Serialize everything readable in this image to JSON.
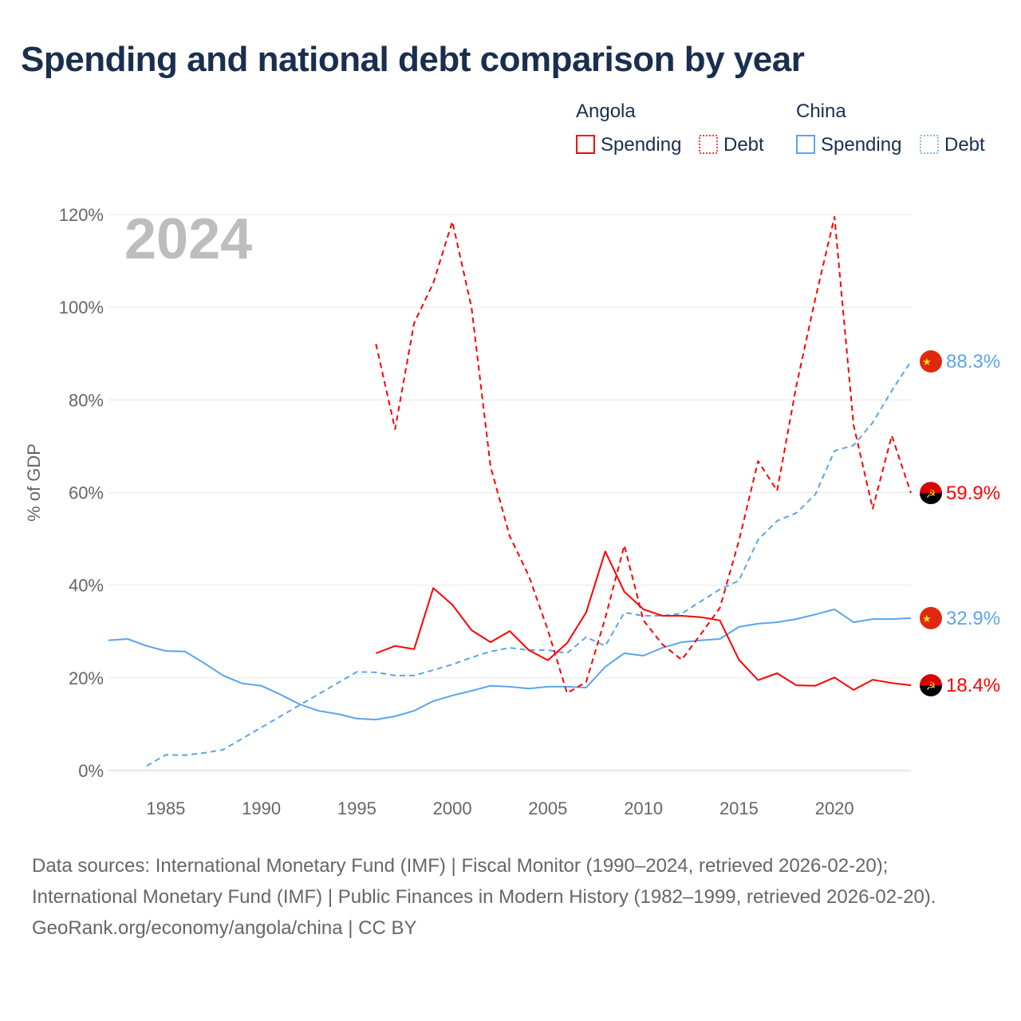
{
  "title": "Spending and national debt comparison by year",
  "year_watermark": "2024",
  "legend": {
    "groups": [
      {
        "country": "Angola",
        "items": [
          "Spending",
          "Debt"
        ],
        "color": "#ff0000"
      },
      {
        "country": "China",
        "items": [
          "Spending",
          "Debt"
        ],
        "color": "#5aa5ee"
      }
    ]
  },
  "chart_data": {
    "type": "line",
    "title": "Spending and national debt comparison by year",
    "ylabel": "% of GDP",
    "xlabel": "",
    "xlim": [
      1982,
      2024
    ],
    "ylim": [
      0,
      120
    ],
    "x_ticks": [
      "1985",
      "1990",
      "1995",
      "2000",
      "2005",
      "2010",
      "2015",
      "2020"
    ],
    "x_tick_values": [
      1985,
      1990,
      1995,
      2000,
      2005,
      2010,
      2015,
      2020
    ],
    "y_ticks": [
      "0%",
      "20%",
      "40%",
      "60%",
      "80%",
      "100%",
      "120%"
    ],
    "y_tick_values": [
      0,
      20,
      40,
      60,
      80,
      100,
      120
    ],
    "grid": true,
    "series": [
      {
        "name": "China Spending",
        "country": "China",
        "style": "solid",
        "color": "#5aa5ee",
        "start": 1982,
        "end_label": "32.9%",
        "values": [
          28.1,
          28.4,
          26.9,
          25.8,
          25.7,
          23.2,
          20.5,
          18.8,
          18.3,
          16.4,
          14.3,
          12.9,
          12.2,
          11.2,
          11.0,
          11.7,
          12.9,
          15.0,
          16.2,
          17.2,
          18.3,
          18.1,
          17.7,
          18.1,
          18.1,
          17.9,
          22.4,
          25.3,
          24.8,
          26.5,
          27.7,
          28.1,
          28.4,
          31.0,
          31.7,
          32.0,
          32.7,
          33.7,
          34.8,
          32.0,
          32.7,
          32.7,
          32.9
        ]
      },
      {
        "name": "China Debt",
        "country": "China",
        "style": "dashed",
        "color": "#5aa5ee",
        "start": 1984,
        "end_label": "88.3%",
        "values": [
          1.0,
          3.4,
          3.3,
          3.8,
          4.5,
          6.9,
          9.3,
          11.7,
          14.1,
          16.5,
          18.9,
          21.3,
          21.2,
          20.5,
          20.5,
          21.7,
          22.9,
          24.4,
          25.7,
          26.5,
          26.0,
          26.0,
          25.3,
          28.8,
          26.9,
          34.1,
          33.4,
          33.4,
          33.9,
          36.5,
          39.1,
          41.0,
          49.8,
          53.9,
          55.6,
          59.6,
          69.0,
          70.2,
          75.1,
          82.0,
          88.3
        ]
      },
      {
        "name": "Angola Spending",
        "country": "Angola",
        "style": "solid",
        "color": "#ff0000",
        "start": 1996,
        "end_label": "18.4%",
        "values": [
          25.3,
          26.9,
          26.2,
          39.4,
          35.8,
          30.3,
          27.7,
          30.1,
          26.0,
          23.8,
          27.5,
          34.1,
          47.3,
          38.6,
          34.8,
          33.4,
          33.4,
          33.1,
          32.4,
          23.9,
          19.5,
          21.0,
          18.4,
          18.3,
          20.1,
          17.4,
          19.6,
          18.9,
          18.4
        ]
      },
      {
        "name": "Angola Debt",
        "country": "Angola",
        "style": "dashed",
        "color": "#ff0000",
        "start": 1996,
        "end_label": "59.9%",
        "values": [
          92.1,
          73.7,
          96.6,
          105.2,
          118.5,
          100.0,
          65.6,
          50.6,
          42.0,
          30.3,
          16.7,
          19.1,
          32.9,
          48.6,
          32.4,
          27.2,
          23.9,
          29.4,
          35.1,
          49.6,
          66.8,
          60.4,
          83.0,
          101.9,
          119.5,
          74.6,
          56.5,
          72.3,
          59.9
        ]
      }
    ]
  },
  "footer": {
    "sources": "Data sources: International Monetary Fund (IMF) | Fiscal Monitor (1990–2024, retrieved 2026-02-20); International Monetary Fund (IMF) | Public Finances in Modern History (1982–1999, retrieved 2026-02-20).",
    "credit": "GeoRank.org/economy/angola/china | CC BY"
  }
}
